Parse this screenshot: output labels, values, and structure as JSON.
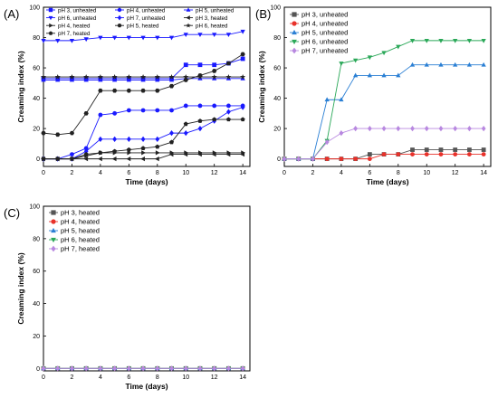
{
  "chart_data": [
    {
      "panel": "(A)",
      "type": "line",
      "xlabel": "Time (days)",
      "ylabel": "Creaming index (%)",
      "xlim": [
        0,
        14.5
      ],
      "ylim": [
        -5,
        100
      ],
      "xticks": [
        0,
        2,
        4,
        6,
        8,
        10,
        12,
        14
      ],
      "yticks": [
        0,
        20,
        40,
        60,
        80,
        100
      ],
      "grid": false,
      "legend": "top, inside plot, 3 columns",
      "x": [
        0,
        1,
        2,
        3,
        4,
        5,
        6,
        7,
        8,
        9,
        10,
        11,
        12,
        13,
        14
      ],
      "series": [
        {
          "name": "pH 3, unheated",
          "color": "#1a1aff",
          "marker": "square",
          "values": [
            53,
            53,
            53,
            53,
            53,
            53,
            53,
            53,
            53,
            53,
            62,
            62,
            62,
            63,
            66
          ]
        },
        {
          "name": "pH 4, unheated",
          "color": "#1a1aff",
          "marker": "circle",
          "values": [
            0,
            0,
            3,
            7,
            29,
            30,
            32,
            32,
            32,
            32,
            35,
            35,
            35,
            35,
            35
          ]
        },
        {
          "name": "pH 5, unheated",
          "color": "#1a1aff",
          "marker": "triangle-up",
          "values": [
            52,
            52,
            52,
            52,
            52,
            52,
            52,
            52,
            52,
            52,
            53,
            53,
            53,
            53,
            53
          ]
        },
        {
          "name": "pH 6, unheated",
          "color": "#1a1aff",
          "marker": "triangle-down",
          "values": [
            78,
            78,
            78,
            79,
            80,
            80,
            80,
            80,
            80,
            80,
            82,
            82,
            82,
            82,
            84
          ]
        },
        {
          "name": "pH 7, unheated",
          "color": "#1a1aff",
          "marker": "diamond",
          "values": [
            0,
            0,
            0,
            5,
            13,
            13,
            13,
            13,
            13,
            17,
            17,
            20,
            25,
            31,
            34
          ]
        },
        {
          "name": "pH 3, heated",
          "color": "#222222",
          "marker": "triangle-left",
          "values": [
            0,
            0,
            0,
            0,
            0,
            0,
            0,
            0,
            0,
            3,
            3,
            3,
            3,
            3,
            3
          ]
        },
        {
          "name": "pH 4, heated",
          "color": "#222222",
          "marker": "triangle-right",
          "values": [
            0,
            0,
            0,
            2,
            4,
            4,
            4,
            4,
            4,
            4,
            4,
            4,
            4,
            4,
            4
          ]
        },
        {
          "name": "pH 5, heated",
          "color": "#222222",
          "marker": "hexagon",
          "values": [
            17,
            16,
            17,
            30,
            45,
            45,
            45,
            45,
            45,
            48,
            52,
            55,
            58,
            63,
            69
          ]
        },
        {
          "name": "pH 6, heated",
          "color": "#222222",
          "marker": "star",
          "values": [
            54,
            54,
            54,
            54,
            54,
            54,
            54,
            54,
            54,
            54,
            54,
            54,
            54,
            54,
            54
          ]
        },
        {
          "name": "pH 7, heated",
          "color": "#222222",
          "marker": "pentagon",
          "values": [
            0,
            0,
            0,
            3,
            4,
            5,
            6,
            7,
            8,
            11,
            23,
            25,
            26,
            26,
            26
          ]
        }
      ]
    },
    {
      "panel": "(B)",
      "type": "line",
      "xlabel": "Time (days)",
      "ylabel": "Creaming index (%)",
      "xlim": [
        0,
        14.5
      ],
      "ylim": [
        -5,
        100
      ],
      "xticks": [
        0,
        2,
        4,
        6,
        8,
        10,
        12,
        14
      ],
      "yticks": [
        0,
        20,
        40,
        60,
        80,
        100
      ],
      "grid": false,
      "legend": "top-left, inside plot",
      "x": [
        0,
        1,
        2,
        3,
        4,
        5,
        6,
        7,
        8,
        9,
        10,
        11,
        12,
        13,
        14
      ],
      "series": [
        {
          "name": "pH 3, unheated",
          "color": "#555555",
          "marker": "square",
          "values": [
            0,
            0,
            0,
            0,
            0,
            0,
            3,
            3,
            3,
            6,
            6,
            6,
            6,
            6,
            6
          ]
        },
        {
          "name": "pH 4, unheated",
          "color": "#e8312a",
          "marker": "circle",
          "values": [
            0,
            0,
            0,
            0,
            0,
            0,
            0,
            3,
            3,
            3,
            3,
            3,
            3,
            3,
            3
          ]
        },
        {
          "name": "pH 5, unheated",
          "color": "#2a7fd4",
          "marker": "triangle-up",
          "values": [
            0,
            0,
            0,
            39,
            39,
            55,
            55,
            55,
            55,
            62,
            62,
            62,
            62,
            62,
            62
          ]
        },
        {
          "name": "pH 6, unheated",
          "color": "#2aa858",
          "marker": "triangle-down",
          "values": [
            0,
            0,
            0,
            12,
            63,
            65,
            67,
            70,
            74,
            78,
            78,
            78,
            78,
            78,
            78
          ]
        },
        {
          "name": "pH 7, unheated",
          "color": "#b888e0",
          "marker": "diamond",
          "values": [
            0,
            0,
            0,
            11,
            17,
            20,
            20,
            20,
            20,
            20,
            20,
            20,
            20,
            20,
            20
          ]
        }
      ]
    },
    {
      "panel": "(C)",
      "type": "line",
      "xlabel": "Time (days)",
      "ylabel": "Creaming index (%)",
      "xlim": [
        0,
        14.5
      ],
      "ylim": [
        -1.5,
        100
      ],
      "xticks": [
        0,
        2,
        4,
        6,
        8,
        10,
        12,
        14
      ],
      "yticks": [
        0,
        20,
        40,
        60,
        80,
        100
      ],
      "grid": false,
      "legend": "top-left, inside plot",
      "x": [
        0,
        1,
        2,
        3,
        4,
        5,
        6,
        7,
        8,
        9,
        10,
        11,
        12,
        13,
        14
      ],
      "series": [
        {
          "name": "pH 3, heated",
          "color": "#555555",
          "marker": "square",
          "values": [
            0,
            0,
            0,
            0,
            0,
            0,
            0,
            0,
            0,
            0,
            0,
            0,
            0,
            0,
            0
          ]
        },
        {
          "name": "pH 4, heated",
          "color": "#e8312a",
          "marker": "circle",
          "values": [
            0,
            0,
            0,
            0,
            0,
            0,
            0,
            0,
            0,
            0,
            0,
            0,
            0,
            0,
            0
          ]
        },
        {
          "name": "pH 5, heated",
          "color": "#2a7fd4",
          "marker": "triangle-up",
          "values": [
            0,
            0,
            0,
            0,
            0,
            0,
            0,
            0,
            0,
            0,
            0,
            0,
            0,
            0,
            0
          ]
        },
        {
          "name": "pH 6, heated",
          "color": "#2aa858",
          "marker": "triangle-down",
          "values": [
            0,
            0,
            0,
            0,
            0,
            0,
            0,
            0,
            0,
            0,
            0,
            0,
            0,
            0,
            0
          ]
        },
        {
          "name": "pH 7, heated",
          "color": "#b888e0",
          "marker": "diamond",
          "values": [
            0,
            0,
            0,
            0,
            0,
            0,
            0,
            0,
            0,
            0,
            0,
            0,
            0,
            0,
            0
          ]
        }
      ]
    }
  ]
}
